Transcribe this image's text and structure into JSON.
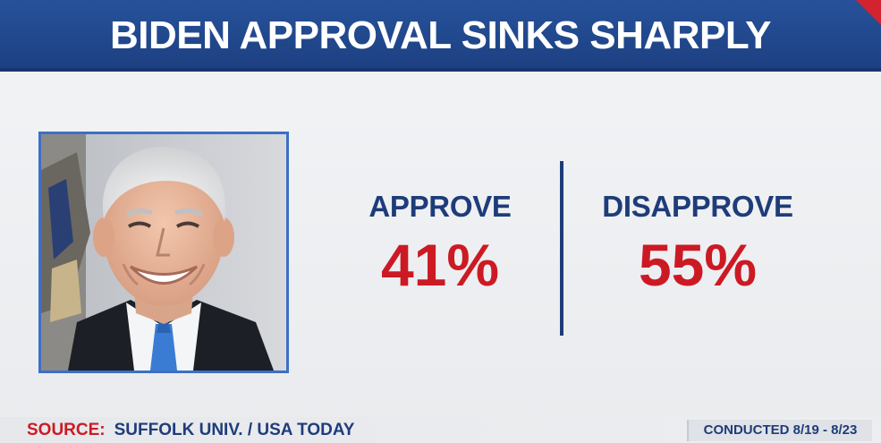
{
  "title": "BIDEN APPROVAL SINKS SHARPLY",
  "approve": {
    "label": "APPROVE",
    "value": "41%"
  },
  "disapprove": {
    "label": "DISAPPROVE",
    "value": "55%"
  },
  "source": {
    "label": "SOURCE:",
    "text": "SUFFOLK UNIV. / USA TODAY"
  },
  "conducted": "CONDUCTED 8/19 - 8/23",
  "colors": {
    "navy": "#1f3c7a",
    "title_bar": "#27529b",
    "red": "#cc1a24",
    "frame": "#3c70c4"
  }
}
